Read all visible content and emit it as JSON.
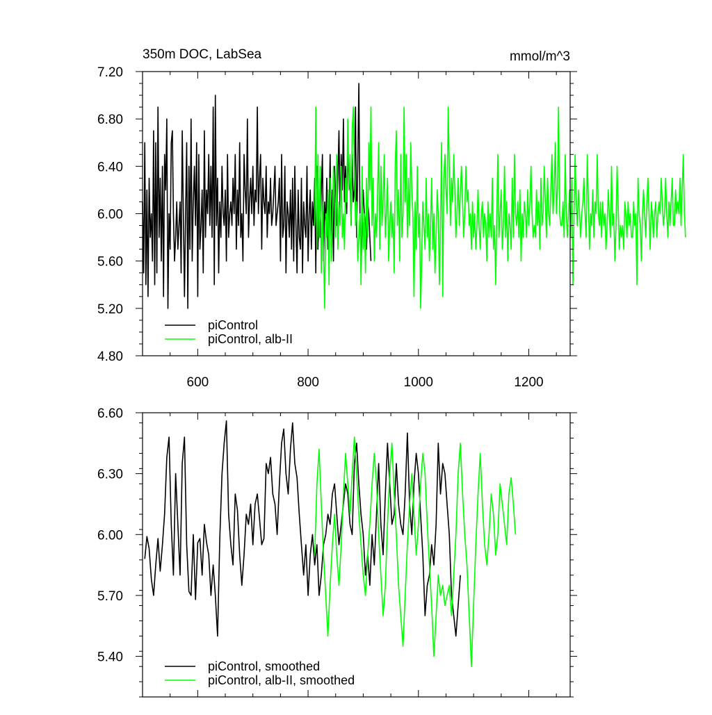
{
  "chart_data": [
    {
      "type": "line",
      "title": "350m DOC, LabSea",
      "units": "mmol/m^3",
      "xlim": [
        500,
        1275
      ],
      "ylim": [
        4.8,
        7.2
      ],
      "xticks": [
        600,
        800,
        1000,
        1200
      ],
      "xtick_labels": [
        "600",
        "800",
        "1000",
        "1200"
      ],
      "yticks": [
        4.8,
        5.2,
        5.6,
        6.0,
        6.4,
        6.8,
        7.2
      ],
      "ytick_labels": [
        "4.80",
        "5.20",
        "5.60",
        "6.00",
        "6.40",
        "6.80",
        "7.20"
      ],
      "grid": false,
      "legend_position": "bottom-left",
      "series": [
        {
          "name": "piControl",
          "color": "#000000",
          "x_start": 500,
          "x_step": 2,
          "values": [
            6.1,
            5.5,
            6.6,
            5.4,
            6.2,
            5.3,
            6.3,
            5.8,
            6.0,
            5.6,
            6.7,
            5.4,
            6.6,
            5.5,
            6.9,
            5.8,
            6.3,
            5.6,
            6.4,
            5.3,
            6.5,
            6.2,
            6.8,
            5.2,
            6.0,
            5.7,
            6.6,
            6.7,
            6.0,
            5.6,
            5.8,
            6.1,
            5.7,
            5.9,
            6.1,
            5.5,
            6.7,
            6.0,
            5.3,
            6.0,
            6.6,
            5.2,
            6.4,
            5.7,
            6.8,
            5.6,
            6.1,
            6.4,
            5.9,
            6.6,
            5.3,
            6.5,
            5.7,
            5.9,
            6.2,
            5.5,
            6.7,
            5.8,
            6.2,
            6.0,
            6.5,
            5.9,
            6.4,
            5.8,
            6.9,
            5.4,
            7.0,
            5.9,
            6.3,
            5.5,
            6.1,
            5.8,
            6.4,
            6.0,
            5.9,
            6.2,
            5.6,
            6.5,
            5.8,
            6.0,
            6.1,
            5.9,
            6.3,
            6.0,
            6.5,
            5.7,
            6.2,
            5.9,
            6.6,
            5.8,
            6.0,
            5.6,
            6.5,
            6.2,
            6.0,
            6.8,
            5.8,
            6.1,
            6.3,
            6.0,
            6.4,
            5.9,
            6.2,
            6.1,
            6.9,
            6.0,
            6.3,
            6.5,
            5.7,
            6.3,
            6.1,
            6.0,
            6.4,
            5.8,
            6.1,
            6.0,
            6.3,
            5.9,
            6.0,
            6.2,
            6.4,
            5.9,
            6.0,
            6.1,
            6.3,
            5.6,
            6.5,
            5.8,
            5.9,
            6.4,
            5.5,
            6.1,
            6.0,
            5.8,
            6.2,
            5.7,
            6.3,
            5.6,
            6.4,
            5.9,
            5.5,
            6.2,
            5.8,
            5.7,
            6.3,
            5.5,
            6.1,
            5.9,
            5.8,
            6.4,
            5.6,
            6.0,
            6.2,
            5.7,
            6.1,
            5.9,
            6.3,
            5.5,
            6.4,
            5.7,
            6.0,
            5.8,
            6.2,
            6.5,
            5.6,
            6.1,
            5.9,
            6.3,
            5.7,
            6.0,
            6.5,
            5.8,
            6.2,
            5.6,
            6.4,
            6.1,
            5.9,
            6.3,
            6.7,
            6.0,
            6.5,
            6.2,
            6.8,
            6.1,
            6.4,
            6.0,
            6.6,
            6.2,
            6.3,
            5.9,
            6.5,
            6.1,
            6.2,
            6.9,
            5.8,
            6.4,
            7.1,
            6.0,
            5.5,
            5.9,
            6.2,
            6.0,
            5.9,
            5.7,
            6.1,
            6.0,
            5.8,
            5.6
          ]
        },
        {
          "name": "piControl, alb-II",
          "color": "#00ff00",
          "x_start": 812,
          "x_step": 2,
          "values": [
            5.9,
            6.9,
            5.7,
            6.5,
            5.8,
            6.4,
            5.5,
            6.1,
            5.7,
            5.2,
            6.0,
            5.8,
            6.2,
            5.4,
            6.3,
            5.6,
            5.9,
            6.4,
            6.2,
            5.8,
            6.5,
            5.7,
            6.1,
            5.9,
            6.4,
            5.8,
            6.0,
            5.7,
            6.3,
            6.1,
            6.8,
            6.2,
            6.5,
            5.9,
            6.7,
            6.9,
            6.4,
            5.9,
            6.1,
            5.6,
            5.8,
            6.0,
            5.4,
            6.4,
            5.7,
            6.0,
            5.5,
            6.3,
            5.8,
            6.6,
            6.2,
            6.9,
            5.9,
            6.3,
            5.6,
            6.0,
            5.8,
            6.2,
            6.6,
            5.7,
            6.4,
            5.9,
            6.1,
            6.5,
            5.8,
            6.0,
            6.3,
            5.6,
            5.9,
            6.1,
            5.8,
            6.0,
            5.5,
            6.4,
            6.7,
            5.9,
            6.2,
            5.6,
            6.5,
            5.8,
            6.0,
            6.9,
            6.1,
            6.5,
            5.8,
            6.3,
            5.9,
            6.6,
            6.2,
            6.0,
            5.3,
            6.1,
            5.7,
            6.4,
            5.8,
            6.0,
            5.2,
            5.6,
            6.1,
            5.9,
            5.7,
            6.3,
            5.8,
            6.0,
            5.6,
            5.9,
            6.3,
            5.7,
            6.0,
            5.5,
            5.8,
            6.2,
            6.0,
            5.4,
            5.9,
            6.6,
            5.3,
            6.3,
            6.5,
            6.2,
            6.0,
            6.9,
            6.4,
            5.9,
            6.3,
            6.1,
            6.5,
            6.2,
            5.8,
            6.0,
            6.3,
            5.9,
            6.2,
            6.4,
            6.1,
            5.8,
            6.0,
            6.4,
            6.1,
            6.2,
            5.9,
            6.0,
            5.7,
            6.1,
            5.8,
            6.0,
            5.7,
            5.9,
            6.2,
            5.9,
            5.7,
            6.0,
            6.1,
            5.8,
            6.0,
            5.9,
            5.6,
            6.1,
            5.8,
            6.0,
            5.8,
            6.3,
            5.7,
            5.9,
            5.4,
            6.0,
            6.5,
            5.8,
            6.0,
            6.2,
            5.7,
            5.9,
            6.4,
            5.8,
            6.1,
            5.6,
            6.0,
            5.9,
            5.7,
            6.3,
            5.8,
            6.5,
            6.0,
            5.9,
            6.1,
            5.8,
            6.2,
            5.6,
            6.0,
            5.8,
            6.1,
            6.0,
            5.8,
            6.2,
            5.9,
            6.1,
            6.4,
            6.0,
            5.8,
            5.9,
            5.8,
            6.2,
            5.9,
            6.1,
            5.7,
            6.3,
            5.9,
            6.0,
            6.4,
            6.1,
            5.8,
            6.3,
            6.0,
            5.9,
            6.2,
            6.5,
            6.0,
            6.2,
            6.6,
            6.0,
            6.2,
            6.9,
            6.0,
            5.9,
            5.9,
            6.1,
            5.8,
            6.5,
            6.0,
            5.8,
            6.0,
            6.2,
            5.8,
            6.3,
            5.4,
            6.0,
            6.5,
            6.1,
            5.9,
            6.2,
            6.0,
            5.8,
            6.0,
            6.1,
            6.3,
            6.0,
            5.8,
            6.5,
            6.1,
            5.7,
            6.0,
            5.9,
            6.2,
            5.8,
            6.1,
            6.0,
            6.5,
            6.0,
            5.9,
            6.1,
            5.8,
            6.1,
            5.9,
            6.0,
            5.7,
            5.9,
            6.2,
            6.0,
            5.8,
            6.4,
            5.9,
            6.0,
            5.6,
            5.9,
            6.4,
            6.1,
            5.7,
            5.9,
            5.8,
            5.9,
            5.7,
            6.1,
            6.0,
            5.8,
            6.1,
            5.9,
            6.0,
            5.8,
            5.8,
            6.1,
            5.9,
            6.0,
            5.4,
            6.3,
            6.0,
            5.9,
            5.6,
            6.0,
            6.2,
            6.0,
            5.8,
            6.1,
            6.3,
            6.0,
            5.7,
            6.1,
            6.0,
            5.8,
            6.0,
            6.1,
            5.8,
            6.0,
            6.1,
            6.0,
            6.3,
            6.1,
            5.9,
            6.0,
            6.3,
            6.0,
            5.8,
            6.1,
            5.9,
            6.1,
            6.3,
            5.9,
            5.9,
            6.2,
            6.0,
            6.1,
            6.0,
            6.3,
            5.9,
            6.2,
            6.5,
            6.0,
            5.8
          ]
        }
      ]
    },
    {
      "type": "line",
      "title": "",
      "xlim": [
        500,
        1275
      ],
      "ylim": [
        5.2,
        6.6
      ],
      "xticks": [
        600,
        800,
        1000,
        1200
      ],
      "xtick_labels": [],
      "yticks": [
        5.4,
        5.7,
        6.0,
        6.3,
        6.6
      ],
      "ytick_labels": [
        "5.40",
        "5.70",
        "6.00",
        "6.30",
        "6.60"
      ],
      "grid": false,
      "legend_position": "bottom-left",
      "series": [
        {
          "name": "piControl, smoothed",
          "color": "#000000",
          "x_start": 504,
          "x_step": 4,
          "values": [
            5.88,
            5.99,
            5.93,
            5.78,
            5.7,
            5.85,
            5.98,
            5.82,
            5.95,
            6.1,
            6.38,
            6.48,
            6.05,
            5.8,
            6.3,
            6.05,
            5.8,
            6.35,
            6.48,
            5.95,
            5.72,
            5.7,
            6.0,
            5.68,
            5.96,
            5.98,
            5.8,
            6.05,
            5.96,
            5.9,
            5.7,
            5.85,
            5.7,
            5.5,
            5.98,
            6.3,
            6.45,
            6.56,
            6.1,
            5.95,
            5.85,
            6.2,
            6.12,
            5.9,
            5.75,
            5.9,
            6.1,
            6.05,
            6.15,
            5.95,
            6.15,
            6.2,
            6.08,
            5.95,
            5.98,
            6.35,
            6.3,
            6.38,
            6.2,
            6.15,
            6.0,
            6.25,
            6.45,
            6.52,
            6.3,
            6.2,
            6.42,
            6.55,
            6.35,
            6.28,
            6.1,
            5.95,
            5.8,
            5.95,
            5.7,
            5.9,
            6.0,
            5.85,
            5.95,
            5.7,
            5.8,
            5.95,
            6.0,
            6.1,
            6.05,
            6.2,
            6.25,
            6.1,
            5.95,
            6.05,
            6.15,
            6.25,
            6.2,
            6.05,
            6.0,
            6.35,
            6.45,
            6.25,
            6.1,
            6.0,
            5.8,
            5.9,
            5.75,
            6.0,
            5.85,
            6.1,
            6.35,
            6.05,
            5.9,
            6.2,
            6.45,
            6.25,
            6.05,
            6.1,
            6.35,
            6.15,
            6.05,
            6.0,
            6.2,
            6.5,
            6.15,
            6.0,
            6.25,
            6.4,
            6.3,
            6.1,
            5.9,
            5.6,
            5.75,
            5.8,
            5.95,
            5.85,
            6.05,
            6.45,
            6.2,
            6.35,
            6.3,
            6.15,
            6.0,
            5.7,
            5.6,
            5.5,
            5.65,
            5.8
          ]
        },
        {
          "name": "piControl, alb-II, smoothed",
          "color": "#00ff00",
          "x_start": 812,
          "x_step": 4,
          "values": [
            5.9,
            6.25,
            6.42,
            6.15,
            5.9,
            5.7,
            5.5,
            5.75,
            5.95,
            6.1,
            5.9,
            5.75,
            5.95,
            6.2,
            6.4,
            6.25,
            6.1,
            6.3,
            6.48,
            6.3,
            6.1,
            5.95,
            5.8,
            5.7,
            5.9,
            6.05,
            6.25,
            6.4,
            6.25,
            6.0,
            5.8,
            5.6,
            5.75,
            6.05,
            6.3,
            6.45,
            6.2,
            6.0,
            5.75,
            5.6,
            5.45,
            5.7,
            5.95,
            6.15,
            6.3,
            6.1,
            5.9,
            6.05,
            6.25,
            6.4,
            6.3,
            6.05,
            5.85,
            5.65,
            5.4,
            5.6,
            5.8,
            5.7,
            5.75,
            5.65,
            5.7,
            5.75,
            5.6,
            5.8,
            6.0,
            6.3,
            6.45,
            6.2,
            6.0,
            5.85,
            5.6,
            5.35,
            5.65,
            5.95,
            6.2,
            6.4,
            6.15,
            5.95,
            5.85,
            6.0,
            6.2,
            6.1,
            5.9,
            6.0,
            6.25,
            6.15,
            6.05,
            5.95,
            6.2,
            6.28,
            6.15,
            6.0
          ]
        }
      ]
    }
  ]
}
